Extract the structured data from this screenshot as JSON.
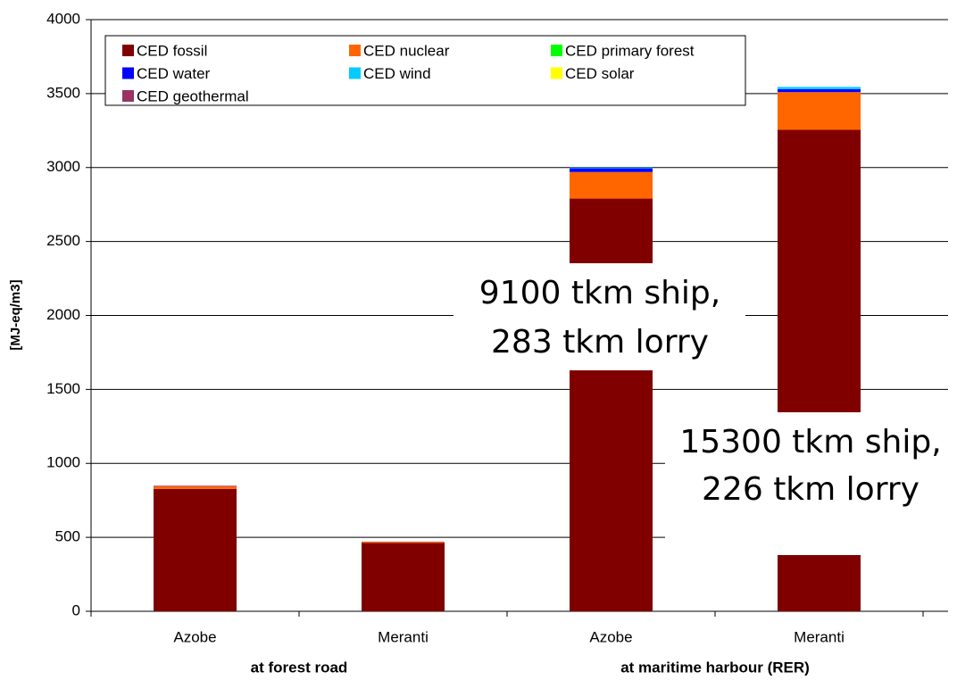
{
  "chart_data": {
    "type": "stacked_bar",
    "y_label": "[MJ-eq/m3]",
    "categories": [
      "Azobe",
      "Meranti",
      "Azobe",
      "Meranti"
    ],
    "groups": [
      "at forest road",
      "at maritime harbour (RER)"
    ],
    "series": [
      {
        "name": "CED fossil",
        "color": "#800000",
        "values": [
          827,
          462,
          2790,
          3255
        ]
      },
      {
        "name": "CED nuclear",
        "color": "#ff6600",
        "values": [
          20,
          8,
          180,
          255
        ]
      },
      {
        "name": "CED primary forest",
        "color": "#00ff00",
        "values": [
          0,
          0,
          0,
          0
        ]
      },
      {
        "name": "CED water",
        "color": "#0000ff",
        "values": [
          2,
          1,
          25,
          20
        ]
      },
      {
        "name": "CED wind",
        "color": "#00ccff",
        "values": [
          0,
          0,
          5,
          15
        ]
      },
      {
        "name": "CED solar",
        "color": "#ffff00",
        "values": [
          0,
          0,
          0,
          0
        ]
      },
      {
        "name": "CED geothermal",
        "color": "#993366",
        "values": [
          0,
          0,
          0,
          0
        ]
      }
    ],
    "ylim": [
      0,
      4000
    ],
    "yticks": [
      0,
      500,
      1000,
      1500,
      2000,
      2500,
      3000,
      3500,
      4000
    ],
    "grid": true,
    "legend": "top-left",
    "annotations": [
      [
        "9100 tkm ship,",
        "283 tkm lorry"
      ],
      [
        "15300 tkm ship,",
        "226 tkm lorry"
      ]
    ]
  }
}
